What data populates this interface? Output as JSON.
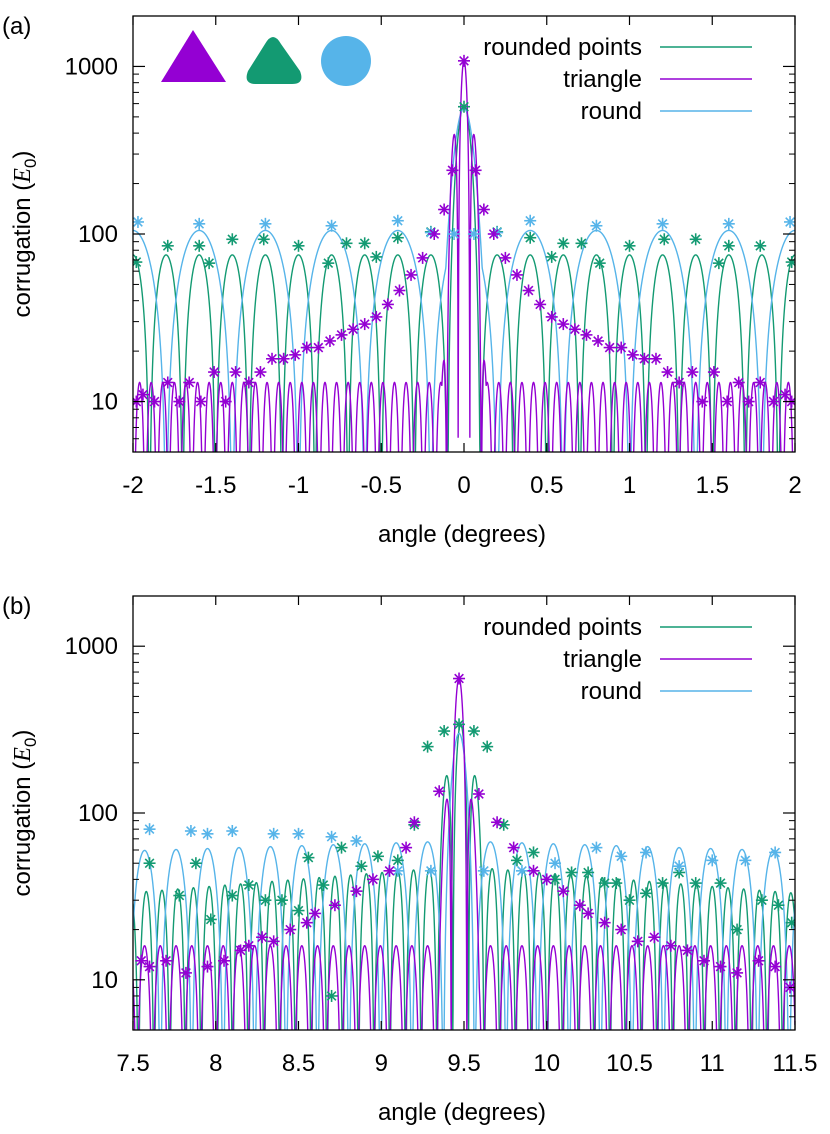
{
  "colors": {
    "rounded_points": "#139a72",
    "triangle": "#9400d3",
    "round": "#56b4e9",
    "axis": "#000000"
  },
  "chart_data": [
    {
      "panel_label": "(a)",
      "type": "line",
      "xlabel": "angle (degrees)",
      "ylabel_prefix": "corrugation (",
      "ylabel_symbol": "E",
      "ylabel_subscript": "0",
      "ylabel_suffix": ")",
      "xlim": [
        -2,
        2
      ],
      "ylim": [
        5,
        2000
      ],
      "yscale": "log",
      "grid": false,
      "legend_position": "top-right",
      "xticks": [
        -2,
        -1.5,
        -1,
        -0.5,
        0,
        0.5,
        1,
        1.5,
        2
      ],
      "xtick_labels": [
        "-2",
        "-1.5",
        "-1",
        "-0.5",
        "0",
        "0.5",
        "1",
        "1.5",
        "2"
      ],
      "yticks": [
        10,
        100,
        1000
      ],
      "ytick_labels": [
        "10",
        "100",
        "1000"
      ],
      "shape_icons": [
        "triangle-shape-icon",
        "rounded-triangle-shape-icon",
        "circle-shape-icon"
      ],
      "series": [
        {
          "name": "rounded points",
          "color_key": "rounded_points",
          "center": 0,
          "peak": 580,
          "peak_width": 0.055,
          "period": 0.2,
          "baseline": 75,
          "baseline_slope": 0,
          "markers": [
            [
              -1.98,
              68
            ],
            [
              -1.79,
              85
            ],
            [
              -1.6,
              85
            ],
            [
              -1.54,
              67
            ],
            [
              -1.4,
              93
            ],
            [
              -1.21,
              93
            ],
            [
              -1.0,
              85
            ],
            [
              -0.82,
              67
            ],
            [
              -0.71,
              88
            ],
            [
              -0.6,
              88
            ],
            [
              -0.53,
              73
            ],
            [
              -0.4,
              95
            ],
            [
              -0.2,
              103
            ],
            [
              0,
              575
            ],
            [
              0.2,
              103
            ],
            [
              0.4,
              95
            ],
            [
              0.53,
              73
            ],
            [
              0.6,
              88
            ],
            [
              0.71,
              88
            ],
            [
              0.82,
              67
            ],
            [
              1.0,
              85
            ],
            [
              1.21,
              93
            ],
            [
              1.4,
              93
            ],
            [
              1.54,
              67
            ],
            [
              1.6,
              85
            ],
            [
              1.79,
              85
            ],
            [
              1.98,
              68
            ]
          ]
        },
        {
          "name": "triangle",
          "color_key": "triangle",
          "center": 0,
          "peak": 1080,
          "peak_width": 0.045,
          "period": 0.07,
          "baseline": 13,
          "baseline_slope": 0,
          "markers": [
            [
              -1.98,
              10
            ],
            [
              -1.94,
              11
            ],
            [
              -1.87,
              10
            ],
            [
              -1.79,
              13
            ],
            [
              -1.72,
              10
            ],
            [
              -1.66,
              13
            ],
            [
              -1.59,
              10
            ],
            [
              -1.51,
              15
            ],
            [
              -1.44,
              10
            ],
            [
              -1.38,
              15
            ],
            [
              -1.3,
              13
            ],
            [
              -1.23,
              15
            ],
            [
              -1.16,
              18
            ],
            [
              -1.09,
              18
            ],
            [
              -1.02,
              19
            ],
            [
              -0.95,
              21
            ],
            [
              -0.88,
              21
            ],
            [
              -0.81,
              23
            ],
            [
              -0.74,
              25
            ],
            [
              -0.67,
              27
            ],
            [
              -0.6,
              29
            ],
            [
              -0.53,
              32
            ],
            [
              -0.46,
              38
            ],
            [
              -0.39,
              46
            ],
            [
              -0.32,
              57
            ],
            [
              -0.25,
              72
            ],
            [
              -0.18,
              100
            ],
            [
              -0.12,
              140
            ],
            [
              -0.07,
              240
            ],
            [
              0,
              1080
            ],
            [
              0.07,
              240
            ],
            [
              0.12,
              140
            ],
            [
              0.18,
              100
            ],
            [
              0.25,
              72
            ],
            [
              0.32,
              57
            ],
            [
              0.39,
              46
            ],
            [
              0.46,
              38
            ],
            [
              0.53,
              32
            ],
            [
              0.6,
              29
            ],
            [
              0.67,
              27
            ],
            [
              0.74,
              25
            ],
            [
              0.81,
              23
            ],
            [
              0.88,
              21
            ],
            [
              0.95,
              21
            ],
            [
              1.02,
              19
            ],
            [
              1.09,
              18
            ],
            [
              1.16,
              18
            ],
            [
              1.23,
              15
            ],
            [
              1.3,
              13
            ],
            [
              1.38,
              15
            ],
            [
              1.44,
              10
            ],
            [
              1.51,
              15
            ],
            [
              1.59,
              10
            ],
            [
              1.66,
              13
            ],
            [
              1.72,
              10
            ],
            [
              1.79,
              13
            ],
            [
              1.87,
              10
            ],
            [
              1.94,
              11
            ],
            [
              1.98,
              10
            ]
          ]
        },
        {
          "name": "round",
          "color_key": "round",
          "center": 0,
          "peak": 560,
          "peak_width": 0.06,
          "period": 0.4,
          "baseline": 105,
          "baseline_slope": 0,
          "markers": [
            [
              -1.97,
              118
            ],
            [
              -1.6,
              115
            ],
            [
              -1.2,
              115
            ],
            [
              -0.8,
              112
            ],
            [
              -0.4,
              120
            ],
            [
              -0.2,
              102
            ],
            [
              -0.06,
              100
            ],
            [
              0.06,
              100
            ],
            [
              0.2,
              102
            ],
            [
              0.4,
              120
            ],
            [
              0.8,
              112
            ],
            [
              1.2,
              115
            ],
            [
              1.6,
              115
            ],
            [
              1.97,
              118
            ]
          ]
        }
      ]
    },
    {
      "panel_label": "(b)",
      "type": "line",
      "xlabel": "angle (degrees)",
      "ylabel_prefix": "corrugation (",
      "ylabel_symbol": "E",
      "ylabel_subscript": "0",
      "ylabel_suffix": ")",
      "xlim": [
        7.5,
        11.5
      ],
      "ylim": [
        5,
        2000
      ],
      "yscale": "log",
      "grid": false,
      "legend_position": "top-right",
      "xticks": [
        7.5,
        8,
        8.5,
        9,
        9.5,
        10,
        10.5,
        11,
        11.5
      ],
      "xtick_labels": [
        "7.5",
        "8",
        "8.5",
        "9",
        "9.5",
        "10",
        "10.5",
        "11",
        "11.5"
      ],
      "yticks": [
        10,
        100,
        1000
      ],
      "ytick_labels": [
        "10",
        "100",
        "1000"
      ],
      "series": [
        {
          "name": "rounded points",
          "color_key": "rounded_points",
          "center": 9.48,
          "peak": 340,
          "peak_width": 0.075,
          "period": 0.095,
          "baseline": 48,
          "baseline_slope": -0.08,
          "markers": [
            [
              7.6,
              50
            ],
            [
              7.78,
              32
            ],
            [
              7.88,
              50
            ],
            [
              7.97,
              23
            ],
            [
              8.1,
              32
            ],
            [
              8.2,
              37
            ],
            [
              8.3,
              30
            ],
            [
              8.4,
              30
            ],
            [
              8.5,
              26
            ],
            [
              8.56,
              54
            ],
            [
              8.65,
              37
            ],
            [
              8.7,
              8
            ],
            [
              8.76,
              62
            ],
            [
              8.88,
              48
            ],
            [
              8.98,
              55
            ],
            [
              9.1,
              52
            ],
            [
              9.2,
              85
            ],
            [
              9.28,
              250
            ],
            [
              9.38,
              310
            ],
            [
              9.47,
              340
            ],
            [
              9.56,
              310
            ],
            [
              9.64,
              250
            ],
            [
              9.74,
              85
            ],
            [
              9.82,
              52
            ],
            [
              9.92,
              58
            ],
            [
              10.05,
              40
            ],
            [
              10.15,
              44
            ],
            [
              10.25,
              44
            ],
            [
              10.35,
              38
            ],
            [
              10.42,
              38
            ],
            [
              10.5,
              30
            ],
            [
              10.6,
              33
            ],
            [
              10.7,
              38
            ],
            [
              10.8,
              44
            ],
            [
              10.9,
              38
            ],
            [
              11.05,
              38
            ],
            [
              11.15,
              20
            ],
            [
              11.3,
              30
            ],
            [
              11.4,
              28
            ],
            [
              11.48,
              22
            ]
          ]
        },
        {
          "name": "triangle",
          "color_key": "triangle",
          "center": 9.47,
          "peak": 640,
          "peak_width": 0.045,
          "period": 0.095,
          "baseline": 16,
          "baseline_slope": 0,
          "markers": [
            [
              7.55,
              13
            ],
            [
              7.6,
              12
            ],
            [
              7.7,
              13
            ],
            [
              7.82,
              11
            ],
            [
              7.95,
              12
            ],
            [
              8.05,
              13
            ],
            [
              8.15,
              15
            ],
            [
              8.2,
              16
            ],
            [
              8.28,
              18
            ],
            [
              8.35,
              17
            ],
            [
              8.45,
              20
            ],
            [
              8.55,
              22
            ],
            [
              8.6,
              25
            ],
            [
              8.72,
              28
            ],
            [
              8.85,
              34
            ],
            [
              8.95,
              40
            ],
            [
              9.05,
              45
            ],
            [
              9.15,
              62
            ],
            [
              9.2,
              88
            ],
            [
              9.35,
              135
            ],
            [
              9.47,
              640
            ],
            [
              9.59,
              130
            ],
            [
              9.7,
              88
            ],
            [
              9.8,
              62
            ],
            [
              9.92,
              45
            ],
            [
              10.0,
              40
            ],
            [
              10.1,
              34
            ],
            [
              10.2,
              28
            ],
            [
              10.25,
              25
            ],
            [
              10.35,
              22
            ],
            [
              10.45,
              20
            ],
            [
              10.55,
              17
            ],
            [
              10.65,
              18
            ],
            [
              10.75,
              16
            ],
            [
              10.85,
              15
            ],
            [
              10.95,
              13
            ],
            [
              11.05,
              12
            ],
            [
              11.15,
              11
            ],
            [
              11.28,
              13
            ],
            [
              11.38,
              12
            ],
            [
              11.47,
              9
            ]
          ]
        },
        {
          "name": "round",
          "color_key": "round",
          "center": 9.47,
          "peak": 300,
          "peak_width": 0.06,
          "period": 0.19,
          "baseline": 68,
          "baseline_slope": -0.03,
          "markers": [
            [
              7.6,
              80
            ],
            [
              7.85,
              78
            ],
            [
              7.95,
              75
            ],
            [
              8.1,
              78
            ],
            [
              8.35,
              75
            ],
            [
              8.5,
              75
            ],
            [
              8.7,
              72
            ],
            [
              8.85,
              68
            ],
            [
              9.1,
              45
            ],
            [
              9.3,
              45
            ],
            [
              9.62,
              45
            ],
            [
              9.85,
              45
            ],
            [
              10.05,
              50
            ],
            [
              10.3,
              62
            ],
            [
              10.45,
              55
            ],
            [
              10.6,
              58
            ],
            [
              10.8,
              48
            ],
            [
              11.0,
              52
            ],
            [
              11.2,
              52
            ],
            [
              11.38,
              58
            ]
          ]
        }
      ]
    }
  ]
}
